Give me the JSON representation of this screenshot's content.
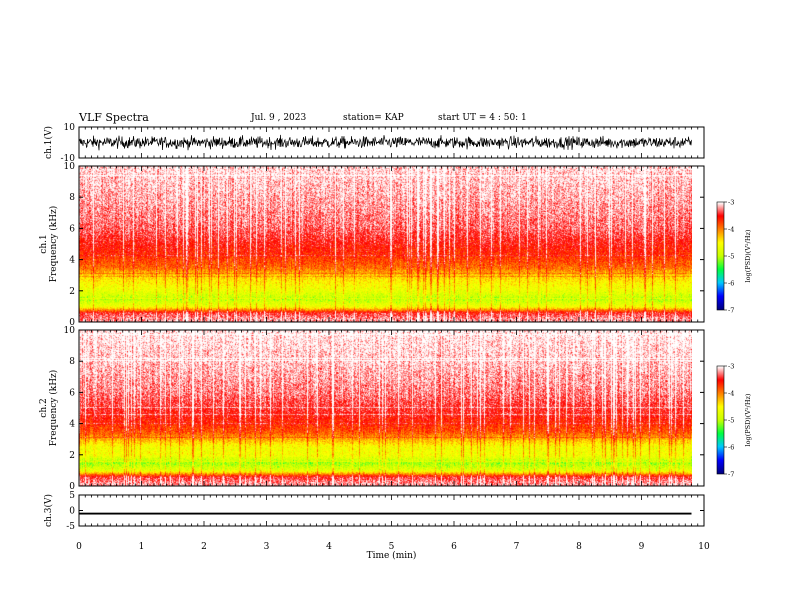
{
  "header": {
    "title": "VLF Spectra",
    "date": "Jul. 9 , 2023",
    "station": "station= KAP",
    "start": "start UT =  4 : 50: 1"
  },
  "chart_data": [
    {
      "type": "line",
      "panel": "ch1-waveform",
      "ylabel": "ch.1(V)",
      "ylim": [
        -10,
        10
      ],
      "y_ticks": [
        "10",
        "-10"
      ],
      "xlim": [
        0,
        10
      ],
      "data_extent_min": [
        0,
        9.8
      ],
      "description_values": "dense oscillating voltage trace, roughly between -8 and +8 V over the full record",
      "color": "#000000"
    },
    {
      "type": "heatmap",
      "panel": "ch1-spectrogram",
      "ylabel": "ch.1",
      "ylabel2": "Frequency (kHz)",
      "ylim": [
        0,
        10
      ],
      "y_ticks": [
        "0",
        "2",
        "4",
        "6",
        "8",
        "10"
      ],
      "xlim": [
        0,
        10
      ],
      "data_extent_min": [
        0,
        9.8
      ],
      "log_psd_profile": [
        {
          "f_khz": 0.2,
          "level": -3.2
        },
        {
          "f_khz": 0.6,
          "level": -3.4
        },
        {
          "f_khz": 1.0,
          "level": -4.6
        },
        {
          "f_khz": 1.5,
          "level": -5.0
        },
        {
          "f_khz": 2.0,
          "level": -4.7
        },
        {
          "f_khz": 2.5,
          "level": -4.5
        },
        {
          "f_khz": 3.0,
          "level": -4.3
        },
        {
          "f_khz": 3.5,
          "level": -3.9
        },
        {
          "f_khz": 4.5,
          "level": -3.6
        },
        {
          "f_khz": 6.0,
          "level": -3.3
        },
        {
          "f_khz": 8.0,
          "level": -3.15
        },
        {
          "f_khz": 10.0,
          "level": -3.05
        }
      ],
      "colorbar": {
        "label": "log(PSD)(V²/Hz)",
        "range": [
          -7,
          -3
        ],
        "ticks": [
          "-3",
          "-4",
          "-5",
          "-6",
          "-7"
        ]
      }
    },
    {
      "type": "heatmap",
      "panel": "ch2-spectrogram",
      "ylabel": "ch.2",
      "ylabel2": "Frequency (kHz)",
      "ylim": [
        0,
        10
      ],
      "y_ticks": [
        "0",
        "2",
        "4",
        "6",
        "8",
        "10"
      ],
      "xlim": [
        0,
        10
      ],
      "data_extent_min": [
        0,
        9.8
      ],
      "log_psd_profile": [
        {
          "f_khz": 0.2,
          "level": -3.2
        },
        {
          "f_khz": 0.6,
          "level": -3.4
        },
        {
          "f_khz": 1.0,
          "level": -4.7
        },
        {
          "f_khz": 1.5,
          "level": -5.1
        },
        {
          "f_khz": 2.0,
          "level": -4.6
        },
        {
          "f_khz": 2.5,
          "level": -4.6
        },
        {
          "f_khz": 3.0,
          "level": -4.2
        },
        {
          "f_khz": 3.5,
          "level": -3.8
        },
        {
          "f_khz": 4.5,
          "level": -3.5
        },
        {
          "f_khz": 6.0,
          "level": -3.25
        },
        {
          "f_khz": 8.0,
          "level": -3.1
        },
        {
          "f_khz": 10.0,
          "level": -3.0
        }
      ],
      "colorbar": {
        "label": "log(PSD)(V²/Hz)",
        "range": [
          -7,
          -3
        ],
        "ticks": [
          "-3",
          "-4",
          "-5",
          "-6",
          "-7"
        ]
      }
    },
    {
      "type": "line",
      "panel": "ch3-waveform",
      "ylabel": "ch.3(V)",
      "ylim": [
        -5,
        5
      ],
      "y_ticks": [
        "5",
        "0",
        "-5"
      ],
      "xlim": [
        0,
        10
      ],
      "data_extent_min": [
        0,
        9.8
      ],
      "description_values": "near-constant narrow band trace at about -0.8 to -1.2 V",
      "color": "#000000"
    }
  ],
  "x_axis": {
    "label": "Time (min)",
    "ticks": [
      "0",
      "1",
      "2",
      "3",
      "4",
      "5",
      "6",
      "7",
      "8",
      "9",
      "10"
    ]
  },
  "colormap": [
    "#000080",
    "#0000ff",
    "#00c8ff",
    "#00ff40",
    "#c8ff00",
    "#ffff00",
    "#ff8000",
    "#ff0000",
    "#ffffff"
  ]
}
